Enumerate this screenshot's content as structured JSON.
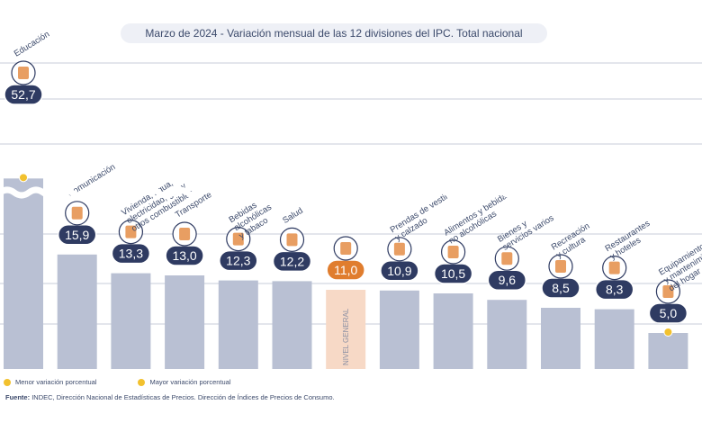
{
  "title": "Marzo de 2024 - Variación mensual de las 12 divisiones del IPC. Total nacional",
  "legend": {
    "min_label": "Menor variación porcentual",
    "max_label": "Mayor variación porcentual",
    "min_color": "#f2c12e",
    "max_color": "#f2c12e"
  },
  "source": {
    "prefix": "Fuente:",
    "text": "INDEC, Dirección Nacional de Estadísticas de Precios. Dirección de Índices de Precios de Consumo."
  },
  "colors": {
    "bar": "#b9c0d3",
    "bar_highlight": "#f7d9c6",
    "badge": "#2f3b62",
    "badge_highlight": "#e07d2e",
    "label": "#3c4a6b",
    "grid": "#c7ccd9"
  },
  "chart_data": {
    "type": "bar",
    "title": "Marzo de 2024 - Variación mensual de las 12 divisiones del IPC. Total nacional",
    "unit": "%",
    "axis_break": true,
    "grid": true,
    "categories": [
      "Educación",
      "Comunicación",
      "Vivienda, agua, electricidad, gas y otros combustibles",
      "Transporte",
      "Bebidas alcohólicas y tabaco",
      "Salud",
      "Nivel general",
      "Prendas de vestir y calzado",
      "Alimentos y bebidas no alcohólicas",
      "Bienes y servicios varios",
      "Recreación y cultura",
      "Restaurantes y hoteles",
      "Equipamiento y mantenimiento del hogar"
    ],
    "label_lines": [
      [
        "Educación"
      ],
      [
        "Comunicación"
      ],
      [
        "Vivienda, agua,",
        "electricidad, gas y",
        "otros combustibles"
      ],
      [
        "Transporte"
      ],
      [
        "Bebidas",
        "alcohólicas",
        "y tabaco"
      ],
      [
        "Salud"
      ],
      [],
      [
        "Prendas de vestir",
        "y calzado"
      ],
      [
        "Alimentos y bebidas",
        "no alcohólicas"
      ],
      [
        "Bienes y",
        "servicios varios"
      ],
      [
        "Recreación",
        "y cultura"
      ],
      [
        "Restaurantes",
        "y hoteles"
      ],
      [
        "Equipamiento",
        "y mantenimiento",
        "del hogar"
      ]
    ],
    "values": [
      52.7,
      15.9,
      13.3,
      13.0,
      12.3,
      12.2,
      11.0,
      10.9,
      10.5,
      9.6,
      8.5,
      8.3,
      5.0
    ],
    "value_labels": [
      "52,7",
      "15,9",
      "13,3",
      "13,0",
      "12,3",
      "12,2",
      "11,0",
      "10,9",
      "10,5",
      "9,6",
      "8,5",
      "8,3",
      "5,0"
    ],
    "highlight_index": 6,
    "highlight_bar_text": "NIVEL GENERAL",
    "max_index": 0,
    "min_index": 12,
    "icons": [
      "calculator-icon",
      "smartphone-icon",
      "house-utilities-icon",
      "car-icon",
      "bottles-icon",
      "medical-cross-icon",
      "market-basket-icon",
      "tshirt-icon",
      "food-plate-icon",
      "personal-care-icon",
      "beach-umbrella-icon",
      "cutlery-icon",
      "washing-machine-icon"
    ]
  }
}
